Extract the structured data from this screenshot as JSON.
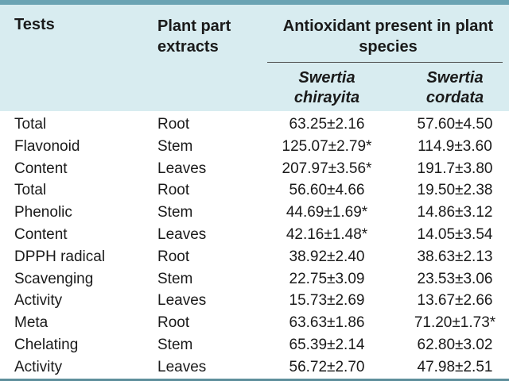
{
  "table": {
    "headers": {
      "tests": "Tests",
      "plant_part_line1": "Plant part",
      "plant_part_line2": "extracts",
      "antioxidant_line1": "Antioxidant present in plant",
      "antioxidant_line2": "species",
      "species1_line1": "Swertia",
      "species1_line2": "chirayita",
      "species2_line1": "Swertia",
      "species2_line2": "cordata"
    },
    "rows": [
      {
        "test": "Total",
        "part": "Root",
        "v1": "63.25±2.16",
        "v2": "57.60±4.50"
      },
      {
        "test": "Flavonoid",
        "part": "Stem",
        "v1": "125.07±2.79*",
        "v2": "114.9±3.60"
      },
      {
        "test": "Content",
        "part": "Leaves",
        "v1": "207.97±3.56*",
        "v2": "191.7±3.80"
      },
      {
        "test": "Total",
        "part": "Root",
        "v1": "56.60±4.66",
        "v2": "19.50±2.38"
      },
      {
        "test": "Phenolic",
        "part": "Stem",
        "v1": "44.69±1.69*",
        "v2": "14.86±3.12"
      },
      {
        "test": "Content",
        "part": "Leaves",
        "v1": "42.16±1.48*",
        "v2": "14.05±3.54"
      },
      {
        "test": "DPPH radical",
        "part": "Root",
        "v1": "38.92±2.40",
        "v2": "38.63±2.13"
      },
      {
        "test": "Scavenging",
        "part": "Stem",
        "v1": "22.75±3.09",
        "v2": "23.53±3.06"
      },
      {
        "test": "Activity",
        "part": "Leaves",
        "v1": "15.73±2.69",
        "v2": "13.67±2.66"
      },
      {
        "test": "Meta",
        "part": "Root",
        "v1": "63.63±1.86",
        "v2": "71.20±1.73*"
      },
      {
        "test": "Chelating",
        "part": "Stem",
        "v1": "65.39±2.14",
        "v2": "62.80±3.02"
      },
      {
        "test": "Activity",
        "part": "Leaves",
        "v1": "56.72±2.70",
        "v2": "47.98±2.51"
      }
    ]
  }
}
